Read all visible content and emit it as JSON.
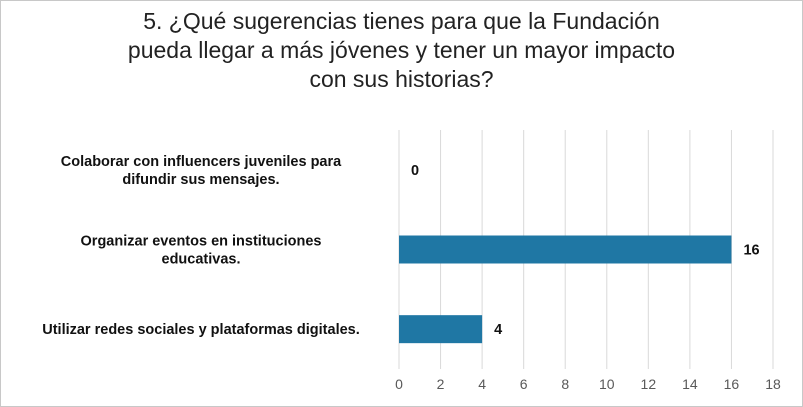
{
  "chart_data": {
    "type": "bar",
    "orientation": "horizontal",
    "title": "5. ¿Qué sugerencias tienes para que la Fundación\npueda llegar a más jóvenes y tener un mayor impacto\ncon sus historias?",
    "categories": [
      [
        "Colaborar con influencers juveniles para",
        "difundir sus mensajes."
      ],
      [
        "Organizar eventos en instituciones",
        "educativas."
      ],
      [
        "Utilizar redes sociales y plataformas digitales."
      ]
    ],
    "values": [
      0,
      16,
      4
    ],
    "value_labels": [
      "0",
      "16",
      "4"
    ],
    "xlim": [
      0,
      18
    ],
    "xticks": [
      "0",
      "2",
      "4",
      "6",
      "8",
      "10",
      "12",
      "14",
      "16",
      "18"
    ],
    "xlabel": "",
    "ylabel": "",
    "grid": "vertical",
    "legend": "none",
    "bar_color": "#1f77a4",
    "grid_color": "#d9d9d9"
  }
}
